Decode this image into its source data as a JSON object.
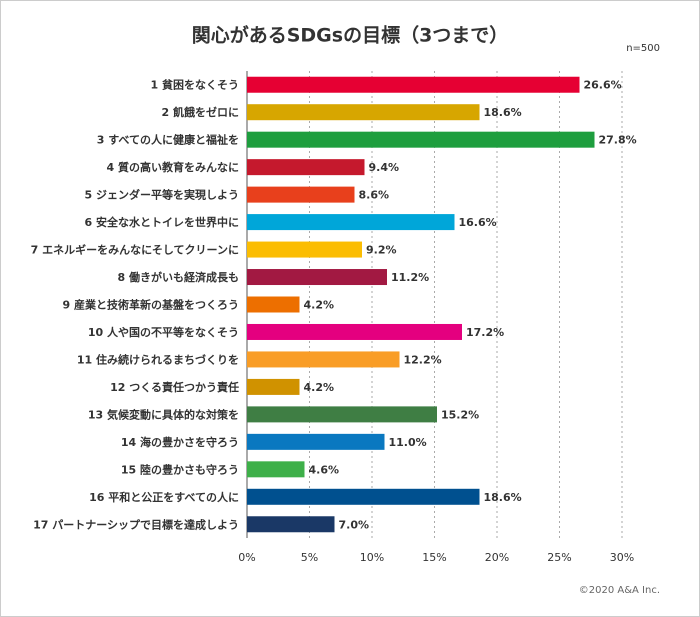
{
  "chart_data": {
    "type": "bar",
    "orientation": "horizontal",
    "title": "関心があるSDGsの目標（3つまで）",
    "annotation": "n=500",
    "source": "©2020 A&A Inc.",
    "categories": [
      "1 貧困をなくそう",
      "2 飢餓をゼロに",
      "3 すべての人に健康と福祉を",
      "4 質の高い教育をみんなに",
      "5 ジェンダー平等を実現しよう",
      "6 安全な水とトイレを世界中に",
      "7 エネルギーをみんなにそしてクリーンに",
      "8 働きがいも経済成長も",
      "9 産業と技術革新の基盤をつくろう",
      "10 人や国の不平等をなくそう",
      "11 住み続けられるまちづくりを",
      "12 つくる責任つかう責任",
      "13 気候変動に具体的な対策を",
      "14 海の豊かさを守ろう",
      "15 陸の豊かさも守ろう",
      "16 平和と公正をすべての人に",
      "17 パートナーシップで目標を達成しよう"
    ],
    "values": [
      26.6,
      18.6,
      27.8,
      9.4,
      8.6,
      16.6,
      9.2,
      11.2,
      4.2,
      17.2,
      12.2,
      4.2,
      15.2,
      11.0,
      4.6,
      18.6,
      7.0
    ],
    "value_labels": [
      "26.6%",
      "18.6%",
      "27.8%",
      "9.4%",
      "8.6%",
      "16.6%",
      "9.2%",
      "11.2%",
      "4.2%",
      "17.2%",
      "12.2%",
      "4.2%",
      "15.2%",
      "11.0%",
      "4.6%",
      "18.6%",
      "7.0%"
    ],
    "colors": [
      "#e60033",
      "#d7a600",
      "#1e9e3e",
      "#c5192d",
      "#e8401c",
      "#00a6d9",
      "#fbbd02",
      "#a21942",
      "#ed6f00",
      "#e4007f",
      "#f99d26",
      "#d09200",
      "#3f7e44",
      "#0a78c0",
      "#3eb049",
      "#00508f",
      "#1a3866"
    ],
    "xlim": [
      0,
      30
    ],
    "xticks": [
      {
        "value": 0,
        "label": "0%"
      },
      {
        "value": 5,
        "label": "5%"
      },
      {
        "value": 10,
        "label": "10%"
      },
      {
        "value": 15,
        "label": "15%"
      },
      {
        "value": 20,
        "label": "20%"
      },
      {
        "value": 25,
        "label": "25%"
      },
      {
        "value": 30,
        "label": "30%"
      }
    ],
    "grid": true
  }
}
